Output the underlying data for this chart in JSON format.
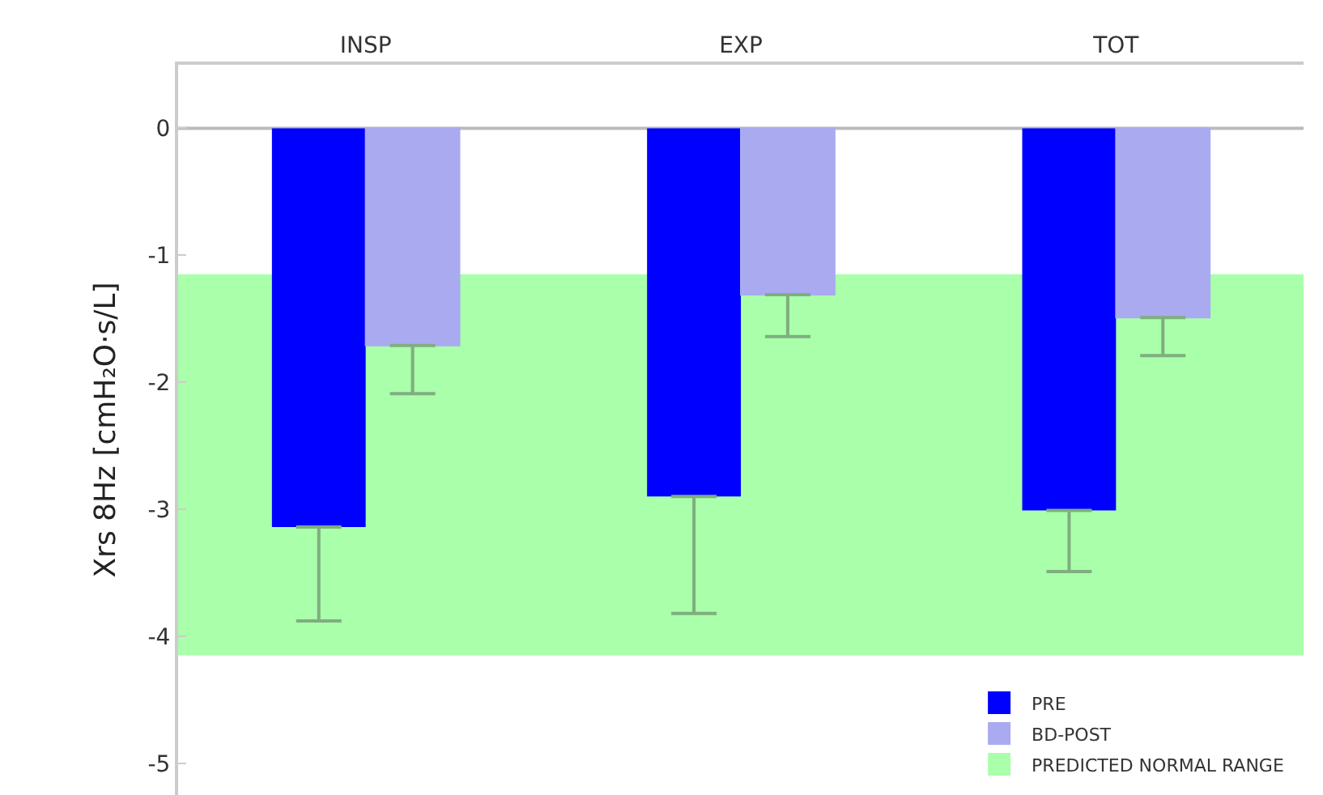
{
  "chart_data": {
    "type": "bar",
    "ylabel": "Xrs 8Hz [cmH₂O·s/L]",
    "categories": [
      "INSP",
      "EXP",
      "TOT"
    ],
    "series": [
      {
        "name": "PRE",
        "color": "#0000ff",
        "values": [
          -3.14,
          -2.9,
          -3.01
        ],
        "errors": [
          [
            -3.88,
            -3.14
          ],
          [
            -3.82,
            -2.9
          ],
          [
            -3.49,
            -3.01
          ]
        ]
      },
      {
        "name": "BD-POST",
        "color": "#aaaaf0",
        "values": [
          -1.71,
          -1.31,
          -1.49
        ],
        "errors": [
          [
            -2.09,
            -1.71
          ],
          [
            -1.64,
            -1.31
          ],
          [
            -1.79,
            -1.49
          ]
        ]
      }
    ],
    "bands": [
      {
        "axis": "y",
        "from": -4.15,
        "to": -1.15,
        "label": "PREDICTED NORMAL RANGE",
        "color": "#aaffaa"
      }
    ],
    "ref_lines": [
      {
        "axis": "y",
        "value": 0,
        "color": "#bbbbbb"
      }
    ],
    "ylim": [
      -5.25,
      0.5
    ],
    "yticks": [
      0,
      -1,
      -2,
      -3,
      -4,
      -5
    ],
    "grid": false,
    "legend": "bottom right"
  }
}
